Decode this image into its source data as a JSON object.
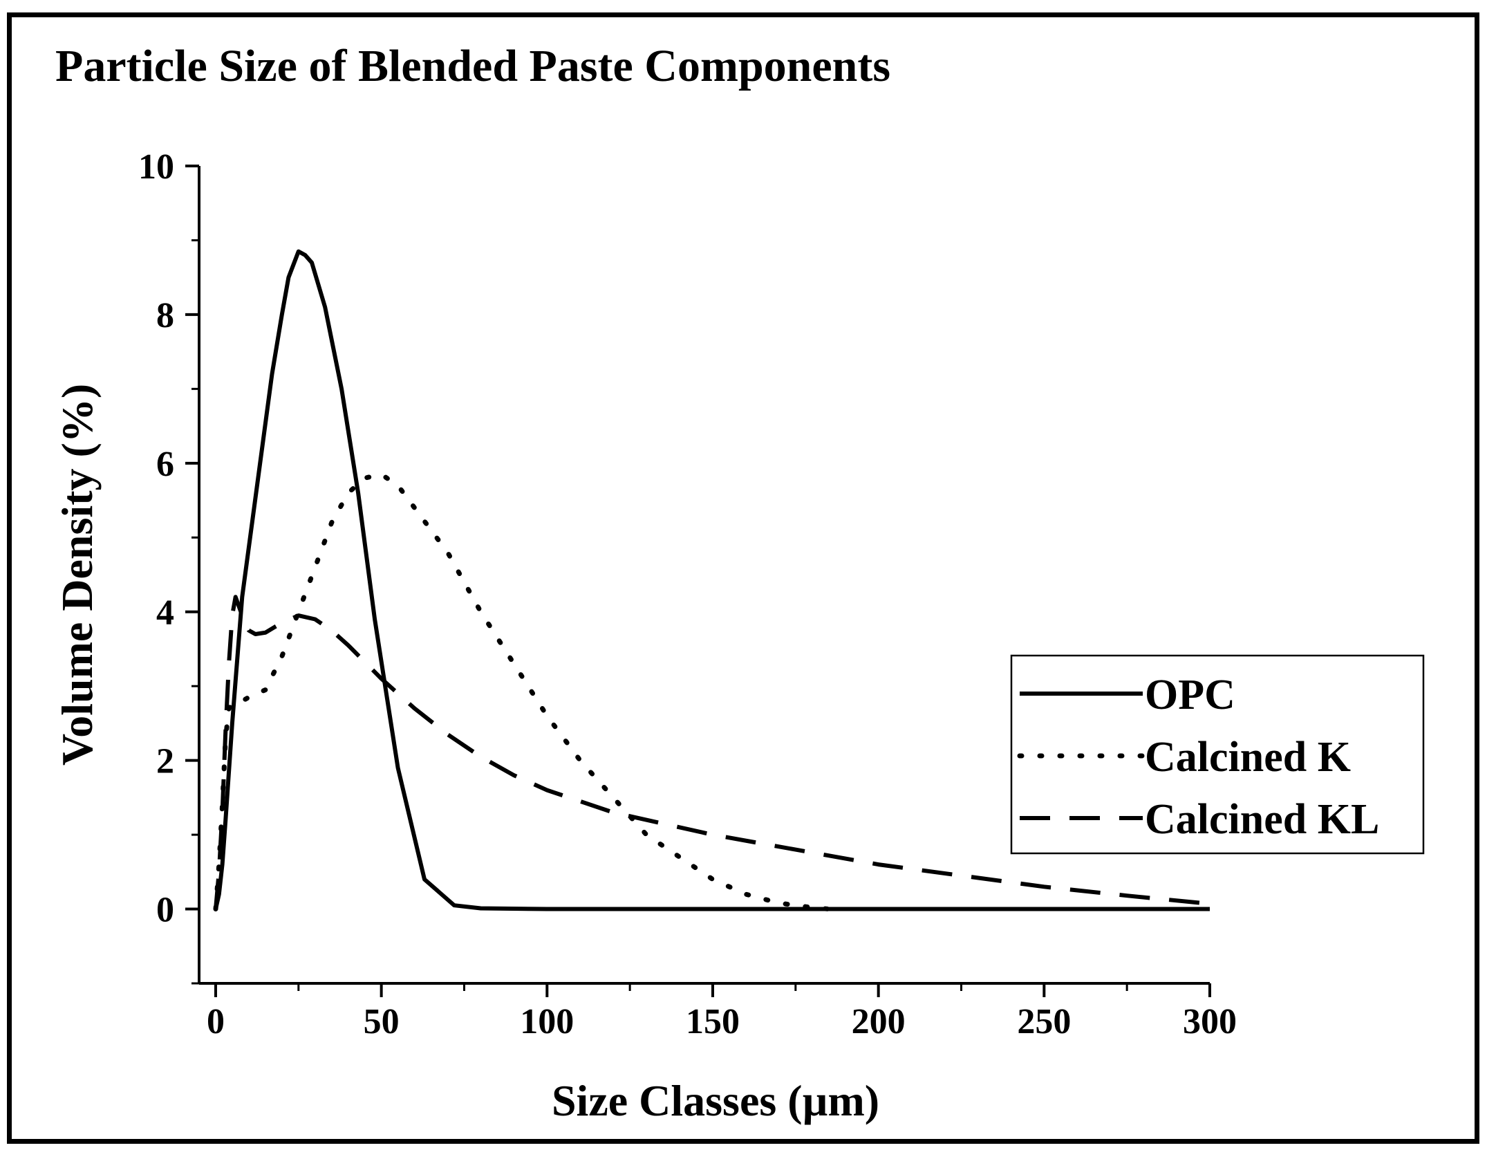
{
  "chart_data": {
    "type": "line",
    "title": "Particle Size of Blended Paste Components",
    "xlabel": "Size Classes (µm)",
    "ylabel": "Volume Density (%)",
    "xlim": [
      -5,
      300
    ],
    "ylim": [
      -1,
      10
    ],
    "xticks": [
      "0",
      "50",
      "100",
      "150",
      "200",
      "250",
      "300"
    ],
    "yticks": [
      "0",
      "2",
      "4",
      "6",
      "8",
      "10"
    ],
    "grid": false,
    "legend_position": "right",
    "series": [
      {
        "name": "OPC",
        "style": "solid",
        "x": [
          0,
          1,
          2,
          3,
          5,
          8,
          11,
          14,
          17,
          20,
          22,
          25,
          27,
          29,
          33,
          38,
          43,
          48,
          55,
          63,
          72,
          80,
          100,
          150,
          200,
          250,
          300
        ],
        "y": [
          0,
          0.2,
          0.6,
          1.2,
          2.5,
          4.2,
          5.2,
          6.2,
          7.2,
          8.0,
          8.5,
          8.85,
          8.8,
          8.7,
          8.1,
          7.0,
          5.6,
          3.9,
          1.9,
          0.4,
          0.05,
          0.01,
          0,
          0,
          0,
          0,
          0
        ]
      },
      {
        "name": "Calcined K",
        "style": "dotted",
        "x": [
          0,
          1,
          2,
          3,
          4,
          5,
          6,
          8,
          10,
          15,
          20,
          25,
          30,
          35,
          40,
          45,
          50,
          55,
          60,
          70,
          80,
          90,
          100,
          110,
          120,
          130,
          140,
          150,
          160,
          170,
          180,
          185
        ],
        "y": [
          0,
          0.6,
          1.4,
          2.3,
          2.7,
          2.75,
          2.75,
          2.8,
          2.85,
          2.95,
          3.4,
          4.0,
          4.6,
          5.2,
          5.6,
          5.8,
          5.85,
          5.7,
          5.4,
          4.8,
          4.0,
          3.3,
          2.6,
          2.0,
          1.5,
          1.0,
          0.7,
          0.4,
          0.2,
          0.08,
          0.02,
          0
        ]
      },
      {
        "name": "Calcined KL",
        "style": "dashed",
        "x": [
          0,
          1,
          2,
          3,
          4,
          5,
          6,
          8,
          10,
          12,
          15,
          18,
          20,
          25,
          30,
          35,
          40,
          50,
          60,
          70,
          80,
          90,
          100,
          120,
          150,
          175,
          200,
          225,
          250,
          275,
          300
        ],
        "y": [
          0,
          0.5,
          1.3,
          2.4,
          3.3,
          3.95,
          4.2,
          3.95,
          3.75,
          3.7,
          3.72,
          3.8,
          3.85,
          3.95,
          3.9,
          3.75,
          3.55,
          3.1,
          2.7,
          2.35,
          2.05,
          1.8,
          1.6,
          1.3,
          1.0,
          0.8,
          0.6,
          0.45,
          0.3,
          0.18,
          0.07
        ]
      }
    ]
  }
}
